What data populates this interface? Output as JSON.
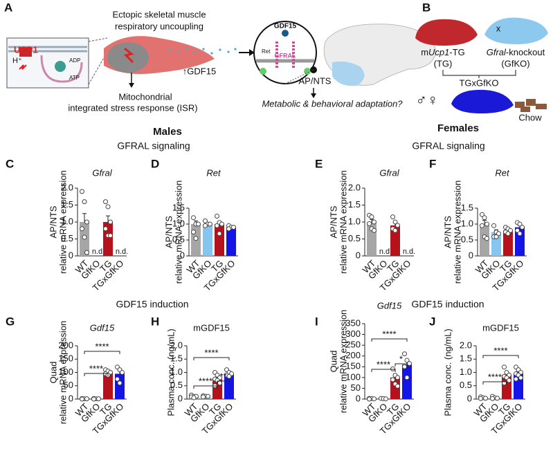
{
  "panel_labels": [
    "A",
    "B"
  ],
  "diagram": {
    "muscle_title": [
      "Ectopic skeletal muscle",
      "respiratory uncoupling"
    ],
    "ucp1": "UCP1",
    "h_plus": "H⁺",
    "adp": "ADP",
    "atp": "ATP",
    "isr": [
      "Mitochondrial",
      "integrated stress response (ISR)"
    ],
    "gdf15_up": "↑GDF15",
    "gdf15": "GDF15",
    "ret": "Ret",
    "gfral": "GFRAL",
    "ap_nts": "AP/NTS",
    "outcome": "Metabolic & behavioral adaptation?",
    "tg_line1": [
      "m",
      "Ucp1",
      "-TG"
    ],
    "tg_line2": "(TG)",
    "cross": "x",
    "ko_line1": [
      "Gfral",
      "-knockout"
    ],
    "ko_line2": "(GfKO)",
    "offspring": "TGxGfKO",
    "sexes": "♂♀",
    "diet": "Chow"
  },
  "sections": [
    {
      "sex": "Males",
      "top": "GFRAL signaling",
      "bottom": "GDF15 induction"
    },
    {
      "sex": "Females",
      "top": "GFRAL signaling",
      "bottom": "GDF15 induction"
    }
  ],
  "chart_data": [
    {
      "type": "bar",
      "panel": "C",
      "title": "Gfral",
      "title_italic": true,
      "ylabel": [
        "AP/NTS",
        "relative mRNA expression"
      ],
      "categories": [
        "WT",
        "GfKO",
        "TG",
        "TGxGfKO"
      ],
      "colors": [
        "#a6a6a6",
        "#86c5ef",
        "#b5121b",
        "#1414e6"
      ],
      "values": [
        1.0,
        null,
        1.0,
        null
      ],
      "value_labels": [
        null,
        "n.d.",
        null,
        "n.d."
      ],
      "errors": [
        0.25,
        null,
        0.18,
        null
      ],
      "points": [
        [
          1.9,
          1.6,
          1.0,
          0.8,
          0.55,
          0.1
        ],
        [],
        [
          1.6,
          1.45,
          1.0,
          0.8,
          0.6,
          0.6
        ],
        []
      ],
      "ylim": [
        0,
        2
      ],
      "yticks": [
        0,
        0.5,
        {
          "value": 1,
          "label": "1.0"
        },
        1.5,
        {
          "value": 2,
          "label": "2.0"
        }
      ],
      "comparisons": []
    },
    {
      "type": "bar",
      "panel": "D",
      "title": "Ret",
      "title_italic": true,
      "ylabel": [
        "AP/NTS",
        "relative mRNA expression"
      ],
      "categories": [
        "WT",
        "GfKO",
        "TG",
        "TGxGfKO"
      ],
      "colors": [
        "#a6a6a6",
        "#86c5ef",
        "#b5121b",
        "#1414e6"
      ],
      "values": [
        1.0,
        1.0,
        1.0,
        0.9
      ],
      "errors": [
        0.1,
        0.05,
        0.08,
        0.03
      ],
      "points": [
        [
          1.2,
          1.0,
          1.0,
          0.75,
          0.55
        ],
        [
          1.1,
          1.0,
          1.0,
          0.95
        ],
        [
          1.25,
          1.05,
          1.0,
          0.95,
          0.7
        ],
        [
          0.95,
          0.9,
          0.9,
          0.85
        ]
      ],
      "ylim": [
        0,
        1.5
      ],
      "yticks": [
        0,
        0.5,
        {
          "value": 1,
          "label": "1.0"
        },
        1.5
      ],
      "comparisons": []
    },
    {
      "type": "bar",
      "panel": "E",
      "title": "Gfral",
      "title_italic": true,
      "ylabel": [
        "AP/NTS",
        "relative mRNA expression"
      ],
      "categories": [
        "WT",
        "GfKO",
        "TG",
        "TGxGfKO"
      ],
      "colors": [
        "#a6a6a6",
        "#86c5ef",
        "#b5121b",
        "#1414e6"
      ],
      "values": [
        1.0,
        null,
        0.9,
        null
      ],
      "value_labels": [
        null,
        "n.d.",
        null,
        "n.d."
      ],
      "errors": [
        0.08,
        null,
        0.08,
        null
      ],
      "points": [
        [
          1.2,
          1.15,
          1.0,
          0.95,
          0.8,
          0.75
        ],
        [],
        [
          1.15,
          1.0,
          0.9,
          0.8,
          0.75
        ],
        []
      ],
      "ylim": [
        0,
        2
      ],
      "yticks": [
        0,
        0.5,
        {
          "value": 1,
          "label": "1.0"
        },
        1.5,
        {
          "value": 2,
          "label": "2.0"
        }
      ],
      "comparisons": []
    },
    {
      "type": "bar",
      "panel": "F",
      "title": "Ret",
      "title_italic": true,
      "ylabel": [
        "AP/NTS",
        "relative mRNA expression"
      ],
      "categories": [
        "WT",
        "GfKO",
        "TG",
        "TGxGfKO"
      ],
      "colors": [
        "#a6a6a6",
        "#86c5ef",
        "#b5121b",
        "#1414e6"
      ],
      "values": [
        1.0,
        0.75,
        0.8,
        0.9
      ],
      "errors": [
        0.12,
        0.07,
        0.04,
        0.05
      ],
      "points": [
        [
          1.3,
          1.2,
          1.0,
          0.95,
          0.6,
          0.55
        ],
        [
          0.95,
          0.75,
          0.7,
          0.6,
          0.6
        ],
        [
          0.9,
          0.85,
          0.8,
          0.75,
          0.7
        ],
        [
          1.05,
          1.0,
          0.9,
          0.8,
          0.7
        ]
      ],
      "ylim": [
        0,
        1.5
      ],
      "yticks": [
        0,
        0.5,
        {
          "value": 1,
          "label": "1.0"
        },
        1.5
      ],
      "comparisons": []
    },
    {
      "type": "bar",
      "panel": "G",
      "title": "Gdf15",
      "title_italic": true,
      "ylabel": [
        "Quad",
        "relative mRNA expression"
      ],
      "categories": [
        "WT",
        "GfKO",
        "TG",
        "TGxGfKO"
      ],
      "colors": [
        "#a6a6a6",
        "#86c5ef",
        "#b5121b",
        "#1414e6"
      ],
      "values": [
        1,
        1,
        100,
        95
      ],
      "errors": [
        0.5,
        0.5,
        5,
        12
      ],
      "points": [
        [
          2,
          1,
          1,
          0
        ],
        [
          2,
          1,
          1,
          0
        ],
        [
          110,
          105,
          100,
          95,
          90
        ],
        [
          120,
          110,
          100,
          75,
          60
        ]
      ],
      "ylim": [
        0,
        200
      ],
      "yticks": [
        0,
        50,
        100,
        150,
        200
      ],
      "comparisons": [
        {
          "groups": [
            "WT",
            "TGxGfKO"
          ],
          "label": "****"
        },
        {
          "groups": [
            "WT",
            "TG"
          ],
          "label": "****"
        }
      ]
    },
    {
      "type": "bar",
      "panel": "H",
      "title": "mGDF15",
      "title_italic": false,
      "ylabel": [
        "Plasma conc. (ng/mL)"
      ],
      "categories": [
        "WT",
        "GfKO",
        "TG",
        "TGxGfKO"
      ],
      "colors": [
        "#a6a6a6",
        "#86c5ef",
        "#b5121b",
        "#1414e6"
      ],
      "values": [
        0.1,
        0.1,
        0.75,
        0.95
      ],
      "errors": [
        0.02,
        0.02,
        0.07,
        0.05
      ],
      "points": [
        [
          0.15,
          0.1,
          0.1,
          0.08,
          0.05
        ],
        [
          0.12,
          0.1,
          0.1,
          0.08
        ],
        [
          1.0,
          0.9,
          0.8,
          0.75,
          0.7,
          0.6,
          0.5
        ],
        [
          1.1,
          1.0,
          0.95,
          0.9,
          0.85
        ]
      ],
      "ylim": [
        0,
        2
      ],
      "yticks": [
        0,
        0.5,
        {
          "value": 1,
          "label": "1.0"
        },
        1.5,
        {
          "value": 2,
          "label": "2.0"
        }
      ],
      "comparisons": [
        {
          "groups": [
            "WT",
            "TGxGfKO"
          ],
          "label": "****"
        },
        {
          "groups": [
            "WT",
            "TG"
          ],
          "label": "****"
        },
        {
          "groups": [
            "TG",
            "TGxGfKO"
          ],
          "label": "**"
        }
      ]
    },
    {
      "type": "bar",
      "panel": "I",
      "title": "Gdf15",
      "title_italic": true,
      "ylabel": [
        "Quad",
        "relative mRNA expression"
      ],
      "categories": [
        "WT",
        "GfKO",
        "TG",
        "TGxGfKO"
      ],
      "colors": [
        "#a6a6a6",
        "#86c5ef",
        "#b5121b",
        "#1414e6"
      ],
      "values": [
        1,
        1,
        100,
        160
      ],
      "errors": [
        0.5,
        0.5,
        15,
        20
      ],
      "points": [
        [
          3,
          2,
          1,
          0
        ],
        [
          3,
          2,
          1
        ],
        [
          140,
          110,
          100,
          90,
          70,
          60
        ],
        [
          210,
          180,
          165,
          150,
          100
        ]
      ],
      "ylim": [
        0,
        350
      ],
      "yticks": [
        0,
        50,
        100,
        150,
        200,
        250,
        300,
        350
      ],
      "comparisons": [
        {
          "groups": [
            "WT",
            "TGxGfKO"
          ],
          "label": "****"
        },
        {
          "groups": [
            "WT",
            "TG"
          ],
          "label": "****"
        },
        {
          "groups": [
            "TG",
            "TGxGfKO"
          ],
          "label": "*"
        }
      ]
    },
    {
      "type": "bar",
      "panel": "J",
      "title": "mGDF15",
      "title_italic": false,
      "ylabel": [
        "Plasma conc. (ng/mL)"
      ],
      "categories": [
        "WT",
        "GfKO",
        "TG",
        "TGxGfKO"
      ],
      "colors": [
        "#a6a6a6",
        "#86c5ef",
        "#b5121b",
        "#1414e6"
      ],
      "values": [
        0.05,
        0.05,
        0.9,
        0.95
      ],
      "errors": [
        0.02,
        0.02,
        0.08,
        0.06
      ],
      "points": [
        [
          0.08,
          0.05,
          0.03,
          0.02
        ],
        [
          0.1,
          0.05,
          0.03,
          0.02
        ],
        [
          1.2,
          1.0,
          0.9,
          0.85,
          0.8,
          0.7,
          0.6
        ],
        [
          1.2,
          1.1,
          1.0,
          0.95,
          0.9,
          0.8,
          0.75
        ]
      ],
      "ylim": [
        0,
        2
      ],
      "yticks": [
        0,
        0.5,
        {
          "value": 1,
          "label": "1.0"
        },
        1.5,
        {
          "value": 2,
          "label": "2.0"
        }
      ],
      "comparisons": [
        {
          "groups": [
            "WT",
            "TGxGfKO"
          ],
          "label": "****"
        },
        {
          "groups": [
            "WT",
            "TG"
          ],
          "label": "****"
        }
      ]
    }
  ]
}
